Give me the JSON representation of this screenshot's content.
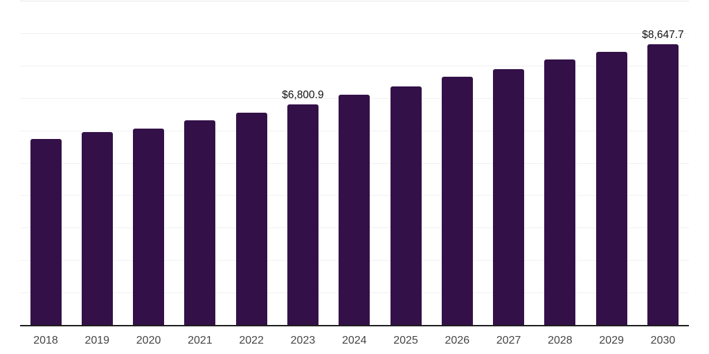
{
  "chart_data": {
    "type": "bar",
    "title": "",
    "xlabel": "",
    "ylabel": "",
    "categories": [
      "2018",
      "2019",
      "2020",
      "2021",
      "2022",
      "2023",
      "2024",
      "2025",
      "2026",
      "2027",
      "2028",
      "2029",
      "2030"
    ],
    "values": [
      5740,
      5955,
      6060,
      6320,
      6540,
      6800.9,
      7090,
      7350,
      7655,
      7895,
      8180,
      8420,
      8647.7
    ],
    "data_labels": [
      {
        "category": "2023",
        "text": "$6,800.9"
      },
      {
        "category": "2030",
        "text": "$8,647.7"
      }
    ],
    "ylim": [
      0,
      10000
    ],
    "grid": {
      "visible": true,
      "step": 1000,
      "color": "#f1f1f1",
      "top_line_color": "#e8e8e8"
    },
    "legend_position": "none",
    "y_tick_labels_visible": false,
    "colors": {
      "bar": "#331148",
      "axis_line": "#1d1d1d",
      "x_tick_label": "#454545",
      "data_label": "#111111",
      "background": "#ffffff"
    }
  }
}
